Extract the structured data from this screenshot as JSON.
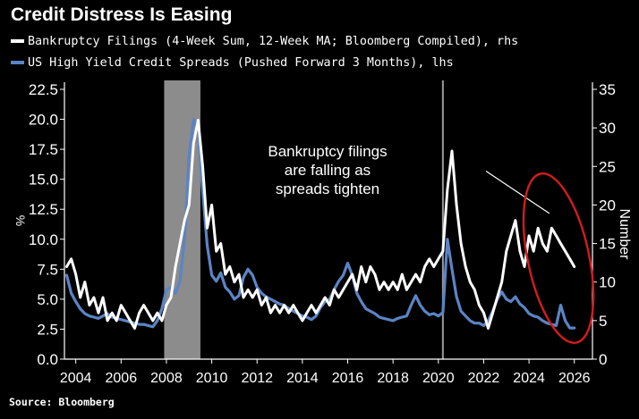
{
  "chart_data": {
    "type": "line",
    "title": "Credit Distress Is Easing",
    "source": "Source: Bloomberg",
    "colors": {
      "background": "#000000",
      "bankruptcy": "#ffffff",
      "spreads": "#5b84c4",
      "recession": "#8c8c8c",
      "marker": "#9a9a9a",
      "annotation_ellipse": "#d41c1c",
      "axis_text": "#ffffff"
    },
    "x_axis": {
      "range": [
        2003.5,
        2026.8
      ],
      "ticks": [
        2004,
        2006,
        2008,
        2010,
        2012,
        2014,
        2016,
        2018,
        2020,
        2022,
        2024,
        2026
      ],
      "tick_labels": [
        "2004",
        "2006",
        "2008",
        "2010",
        "2012",
        "2014",
        "2016",
        "2018",
        "2020",
        "2022",
        "2024",
        "2026"
      ]
    },
    "y_left": {
      "label": "%",
      "range": [
        0,
        22.5
      ],
      "ticks": [
        0,
        2.5,
        5,
        7.5,
        10,
        12.5,
        15,
        17.5,
        20,
        22.5
      ],
      "tick_labels": [
        "0.0",
        "2.5",
        "5.0",
        "7.5",
        "10.0",
        "12.5",
        "15.0",
        "17.5",
        "20.0",
        "22.5"
      ]
    },
    "y_right": {
      "label": "Number",
      "range": [
        0,
        35
      ],
      "ticks": [
        0,
        5,
        10,
        15,
        20,
        25,
        30,
        35
      ],
      "tick_labels": [
        "0",
        "5",
        "10",
        "15",
        "20",
        "25",
        "30",
        "35"
      ]
    },
    "recession_band": {
      "start": 2007.9,
      "end": 2009.5
    },
    "event_marker": {
      "x": 2020.2
    },
    "annotation": {
      "lines": [
        "Bankruptcy filings",
        "are falling as",
        "spreads tighten"
      ],
      "arrow_from": [
        2022.1,
        24.4
      ],
      "arrow_to": [
        2024.9,
        18.9
      ],
      "ellipse_center": [
        2025.3,
        13.1
      ],
      "ellipse_radii": [
        1.35,
        11.2
      ]
    },
    "series": [
      {
        "name": "Bankruptcy Filings (4-Week Sum, 12-Week MA; Bloomberg Compiled), rhs",
        "axis": "right",
        "x": [
          2003.6,
          2003.8,
          2004.0,
          2004.2,
          2004.4,
          2004.6,
          2004.8,
          2005.0,
          2005.2,
          2005.4,
          2005.6,
          2005.8,
          2006.0,
          2006.2,
          2006.4,
          2006.6,
          2006.8,
          2007.0,
          2007.2,
          2007.4,
          2007.6,
          2007.8,
          2008.0,
          2008.2,
          2008.4,
          2008.6,
          2008.8,
          2009.0,
          2009.2,
          2009.4,
          2009.6,
          2009.8,
          2010.0,
          2010.2,
          2010.4,
          2010.6,
          2010.8,
          2011.0,
          2011.2,
          2011.4,
          2011.6,
          2011.8,
          2012.0,
          2012.2,
          2012.4,
          2012.6,
          2012.8,
          2013.0,
          2013.2,
          2013.4,
          2013.6,
          2013.8,
          2014.0,
          2014.2,
          2014.4,
          2014.6,
          2014.8,
          2015.0,
          2015.2,
          2015.4,
          2015.6,
          2015.8,
          2016.0,
          2016.2,
          2016.4,
          2016.6,
          2016.8,
          2017.0,
          2017.2,
          2017.4,
          2017.6,
          2017.8,
          2018.0,
          2018.2,
          2018.4,
          2018.6,
          2018.8,
          2019.0,
          2019.2,
          2019.4,
          2019.6,
          2019.8,
          2020.0,
          2020.2,
          2020.4,
          2020.6,
          2020.8,
          2021.0,
          2021.2,
          2021.4,
          2021.6,
          2021.8,
          2022.0,
          2022.2,
          2022.4,
          2022.6,
          2022.8,
          2023.0,
          2023.2,
          2023.4,
          2023.6,
          2023.8,
          2024.0,
          2024.2,
          2024.4,
          2024.6,
          2024.8,
          2025.0,
          2025.2,
          2025.4,
          2025.6,
          2025.8,
          2026.0
        ],
        "values": [
          12,
          13,
          11,
          8,
          10,
          7,
          8,
          6,
          8,
          5,
          6,
          5,
          7,
          6,
          5,
          4,
          6,
          7,
          6,
          5,
          6,
          5,
          7,
          8,
          12,
          15,
          18,
          20,
          28,
          31,
          25,
          17,
          20,
          14,
          15,
          11,
          12,
          10,
          11,
          8,
          9,
          8,
          9,
          7,
          8,
          6,
          7,
          6,
          7,
          6,
          7,
          6,
          5,
          6,
          7,
          6,
          7,
          8,
          7,
          9,
          8,
          9,
          10,
          11,
          9,
          12,
          10,
          12,
          11,
          9,
          10,
          9,
          10,
          9,
          11,
          9,
          10,
          11,
          10,
          12,
          13,
          12,
          13,
          14,
          22,
          27,
          20,
          15,
          12,
          10,
          9,
          7,
          6,
          4,
          6,
          8,
          10,
          14,
          16,
          18,
          14,
          12,
          16,
          14,
          17,
          15,
          14,
          17,
          16,
          15,
          14,
          13,
          12
        ]
      },
      {
        "name": "US High Yield Credit Spreads (Pushed Forward 3 Months), lhs",
        "axis": "left",
        "x": [
          2003.6,
          2003.8,
          2004.0,
          2004.2,
          2004.4,
          2004.6,
          2004.8,
          2005.0,
          2005.2,
          2005.4,
          2005.6,
          2005.8,
          2006.0,
          2006.2,
          2006.4,
          2006.6,
          2006.8,
          2007.0,
          2007.2,
          2007.4,
          2007.6,
          2007.8,
          2008.0,
          2008.2,
          2008.4,
          2008.6,
          2008.8,
          2009.0,
          2009.2,
          2009.4,
          2009.6,
          2009.8,
          2010.0,
          2010.2,
          2010.4,
          2010.6,
          2010.8,
          2011.0,
          2011.2,
          2011.4,
          2011.6,
          2011.8,
          2012.0,
          2012.2,
          2012.4,
          2012.6,
          2012.8,
          2013.0,
          2013.2,
          2013.4,
          2013.6,
          2013.8,
          2014.0,
          2014.2,
          2014.4,
          2014.6,
          2014.8,
          2015.0,
          2015.2,
          2015.4,
          2015.6,
          2015.8,
          2016.0,
          2016.2,
          2016.4,
          2016.6,
          2016.8,
          2017.0,
          2017.2,
          2017.4,
          2017.6,
          2017.8,
          2018.0,
          2018.2,
          2018.4,
          2018.6,
          2018.8,
          2019.0,
          2019.2,
          2019.4,
          2019.6,
          2019.8,
          2020.0,
          2020.2,
          2020.4,
          2020.6,
          2020.8,
          2021.0,
          2021.2,
          2021.4,
          2021.6,
          2021.8,
          2022.0,
          2022.2,
          2022.4,
          2022.6,
          2022.8,
          2023.0,
          2023.2,
          2023.4,
          2023.6,
          2023.8,
          2024.0,
          2024.2,
          2024.4,
          2024.6,
          2024.8,
          2025.0,
          2025.2,
          2025.4,
          2025.6,
          2025.8,
          2026.0
        ],
        "values": [
          7.0,
          5.5,
          4.8,
          4.2,
          3.8,
          3.6,
          3.5,
          3.4,
          3.6,
          3.8,
          3.5,
          3.4,
          3.3,
          3.2,
          3.1,
          3.0,
          2.9,
          2.9,
          2.8,
          2.7,
          3.2,
          4.2,
          5.8,
          6.0,
          5.5,
          6.5,
          10.0,
          17.0,
          20.0,
          19.0,
          14.0,
          9.5,
          7.0,
          6.5,
          7.2,
          6.0,
          5.6,
          5.0,
          5.3,
          6.8,
          7.5,
          7.0,
          6.0,
          5.5,
          5.2,
          5.0,
          4.8,
          4.6,
          4.5,
          4.2,
          4.0,
          3.8,
          3.6,
          3.5,
          3.3,
          3.6,
          4.3,
          4.8,
          5.0,
          5.8,
          6.5,
          7.0,
          8.0,
          7.0,
          5.5,
          4.8,
          4.2,
          4.0,
          3.8,
          3.5,
          3.4,
          3.3,
          3.2,
          3.4,
          3.5,
          3.6,
          4.5,
          5.3,
          4.5,
          4.0,
          3.7,
          3.8,
          3.6,
          3.9,
          10.0,
          7.5,
          5.2,
          4.0,
          3.6,
          3.2,
          3.0,
          3.0,
          2.8,
          3.2,
          4.0,
          5.0,
          5.6,
          5.0,
          4.8,
          5.2,
          4.6,
          4.3,
          3.8,
          3.6,
          3.5,
          3.2,
          3.0,
          2.9,
          2.8,
          4.5,
          3.2,
          2.6,
          2.6
        ]
      }
    ]
  }
}
